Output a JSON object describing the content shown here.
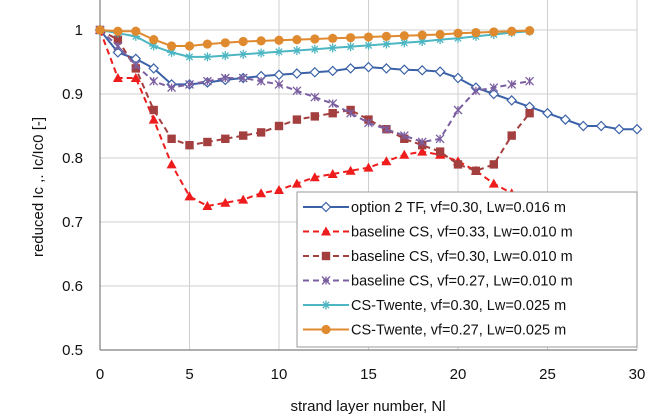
{
  "chart_data": {
    "type": "line",
    "title": "",
    "xlabel": "strand layer number, Nl",
    "ylabel": "reduced Ic ,. Ic/Ic0 [-]",
    "xlim": [
      0,
      30
    ],
    "ylim": [
      0.5,
      1.0
    ],
    "xticks": [
      0,
      5,
      10,
      15,
      20,
      25,
      30
    ],
    "yticks": [
      0.5,
      0.6,
      0.7,
      0.8,
      0.9,
      1
    ],
    "xtick_labels": [
      "0",
      "5",
      "10",
      "15",
      "20",
      "25",
      "30"
    ],
    "ytick_labels": [
      "0.5",
      "0.6",
      "0.7",
      "0.8",
      "0.9",
      "1"
    ],
    "grid": true,
    "legend_position": "lower-right",
    "series": [
      {
        "name": "option 2 TF, vf=0.30, Lw=0.016 m",
        "color": "#3b62a8",
        "dash": "solid",
        "marker": "open-diamond",
        "x": [
          0,
          1,
          2,
          3,
          4,
          5,
          6,
          7,
          8,
          9,
          10,
          11,
          12,
          13,
          14,
          15,
          16,
          17,
          18,
          19,
          20,
          21,
          22,
          23,
          24,
          25,
          26,
          27,
          28,
          29,
          30
        ],
        "y": [
          1.0,
          0.965,
          0.955,
          0.94,
          0.915,
          0.915,
          0.918,
          0.922,
          0.925,
          0.928,
          0.93,
          0.932,
          0.934,
          0.936,
          0.94,
          0.942,
          0.94,
          0.938,
          0.937,
          0.935,
          0.925,
          0.91,
          0.9,
          0.89,
          0.88,
          0.87,
          0.86,
          0.85,
          0.85,
          0.845,
          0.845
        ]
      },
      {
        "name": "baseline CS, vf=0.33, Lw=0.010 m",
        "color": "#ee1c1c",
        "dash": "dashed",
        "marker": "filled-triangle",
        "x": [
          0,
          1,
          2,
          3,
          4,
          5,
          6,
          7,
          8,
          9,
          10,
          11,
          12,
          13,
          14,
          15,
          16,
          17,
          18,
          19,
          20,
          21,
          22,
          23,
          24
        ],
        "y": [
          1.0,
          0.925,
          0.925,
          0.86,
          0.79,
          0.74,
          0.725,
          0.73,
          0.735,
          0.745,
          0.75,
          0.76,
          0.77,
          0.775,
          0.78,
          0.785,
          0.795,
          0.805,
          0.81,
          0.805,
          0.795,
          0.78,
          0.76,
          0.745,
          0.73
        ]
      },
      {
        "name": "baseline CS, vf=0.30, Lw=0.010 m",
        "color": "#a33f3f",
        "dash": "dashed",
        "marker": "filled-square",
        "x": [
          0,
          1,
          2,
          3,
          4,
          5,
          6,
          7,
          8,
          9,
          10,
          11,
          12,
          13,
          14,
          15,
          16,
          17,
          18,
          19,
          20,
          21,
          22,
          23,
          24
        ],
        "y": [
          1.0,
          0.985,
          0.94,
          0.875,
          0.83,
          0.82,
          0.825,
          0.83,
          0.835,
          0.84,
          0.85,
          0.86,
          0.865,
          0.87,
          0.875,
          0.86,
          0.845,
          0.83,
          0.82,
          0.81,
          0.79,
          0.78,
          0.79,
          0.835,
          0.87
        ]
      },
      {
        "name": "baseline CS, vf=0.27, Lw=0.010 m",
        "color": "#7b5fa0",
        "dash": "dashed",
        "marker": "star",
        "x": [
          0,
          1,
          2,
          3,
          4,
          5,
          6,
          7,
          8,
          9,
          10,
          11,
          12,
          13,
          14,
          15,
          16,
          17,
          18,
          19,
          20,
          21,
          22,
          23,
          24
        ],
        "y": [
          1.0,
          0.975,
          0.945,
          0.92,
          0.91,
          0.915,
          0.92,
          0.925,
          0.925,
          0.92,
          0.915,
          0.905,
          0.895,
          0.885,
          0.87,
          0.855,
          0.845,
          0.835,
          0.825,
          0.83,
          0.875,
          0.905,
          0.91,
          0.915,
          0.92
        ]
      },
      {
        "name": "CS-Twente, vf=0.30, Lw=0.025 m",
        "color": "#4db6c3",
        "dash": "solid",
        "marker": "asterisk",
        "x": [
          0,
          1,
          2,
          3,
          4,
          5,
          6,
          7,
          8,
          9,
          10,
          11,
          12,
          13,
          14,
          15,
          16,
          17,
          18,
          19,
          20,
          21,
          22,
          23,
          24
        ],
        "y": [
          1.0,
          0.995,
          0.99,
          0.975,
          0.965,
          0.958,
          0.958,
          0.96,
          0.962,
          0.964,
          0.966,
          0.968,
          0.97,
          0.972,
          0.974,
          0.976,
          0.978,
          0.98,
          0.982,
          0.985,
          0.987,
          0.99,
          0.993,
          0.996,
          0.998
        ]
      },
      {
        "name": "CS-Twente, vf=0.27, Lw=0.025 m",
        "color": "#e08a30",
        "dash": "solid",
        "marker": "filled-circle",
        "x": [
          0,
          1,
          2,
          3,
          4,
          5,
          6,
          7,
          8,
          9,
          10,
          11,
          12,
          13,
          14,
          15,
          16,
          17,
          18,
          19,
          20,
          21,
          22,
          23,
          24
        ],
        "y": [
          1.0,
          0.998,
          0.998,
          0.985,
          0.975,
          0.975,
          0.978,
          0.98,
          0.982,
          0.983,
          0.984,
          0.985,
          0.986,
          0.987,
          0.988,
          0.989,
          0.99,
          0.991,
          0.992,
          0.993,
          0.995,
          0.996,
          0.997,
          0.998,
          0.999
        ]
      }
    ]
  }
}
